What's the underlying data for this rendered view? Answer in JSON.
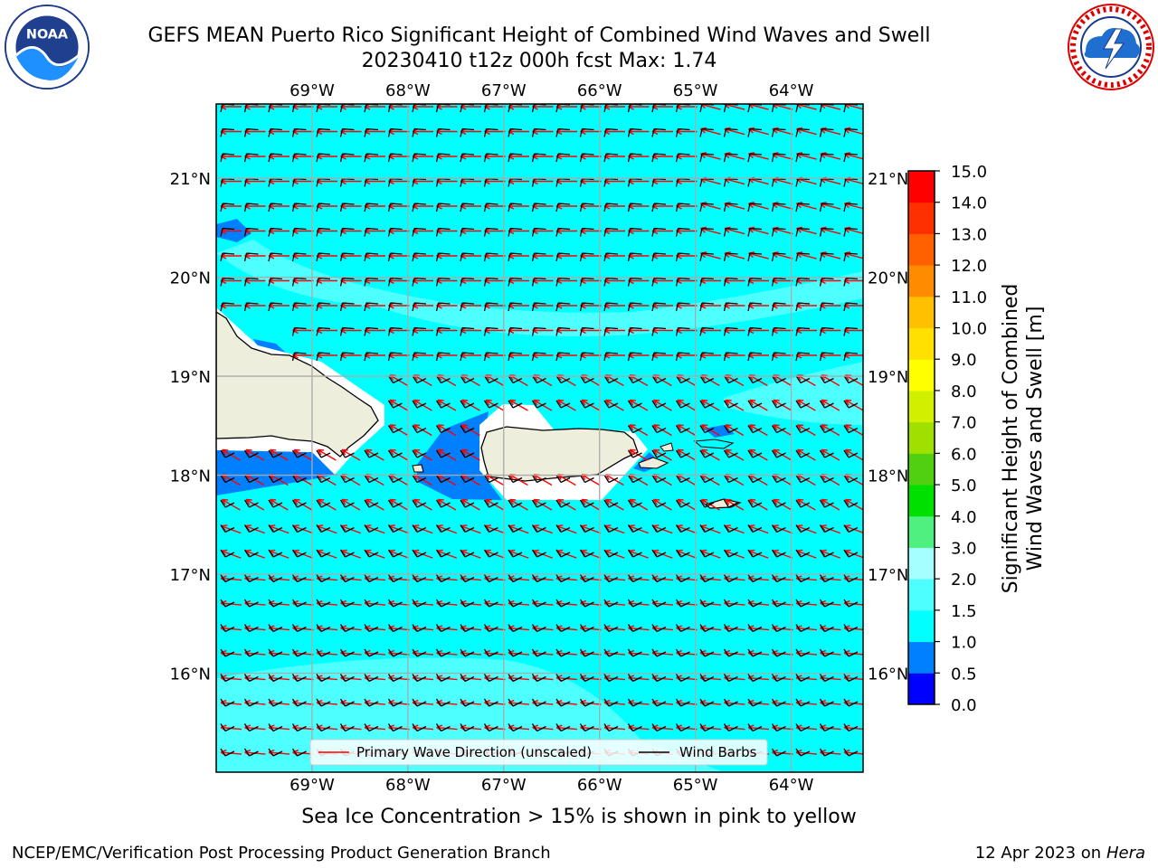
{
  "header": {
    "title_line1": "GEFS MEAN Puerto Rico Significant Height of Combined Wind Waves and Swell",
    "title_line2": "20230410 t12z 000h fcst   Max: 1.74"
  },
  "logos": {
    "left": "noaa-logo",
    "right": "nws-logo",
    "noaa_text": "NOAA"
  },
  "map": {
    "lon_labels": [
      "69°W",
      "68°W",
      "67°W",
      "66°W",
      "65°W",
      "64°W"
    ],
    "lat_labels": [
      "21°N",
      "20°N",
      "19°N",
      "18°N",
      "17°N",
      "16°N"
    ],
    "lon_values": [
      -69,
      -68,
      -67,
      -66,
      -65,
      -64
    ],
    "lat_values": [
      21,
      20,
      19,
      18,
      17,
      16
    ],
    "extent": {
      "lon": [
        -70,
        -63.25
      ],
      "lat": [
        15,
        21.75
      ]
    },
    "colors": {
      "ocean_1_1_5": "#00ffff",
      "ocean_1_5_2": "#4dffff",
      "ocean_0_5_1": "#007fff",
      "shelter": "#ffffff",
      "land": "#eeeedd",
      "wave_arrow": "#ff0000",
      "barb": "#000000"
    }
  },
  "legend": {
    "wave_label": "Primary Wave Direction (unscaled)",
    "barb_label": "Wind Barbs"
  },
  "colorbar": {
    "label_line1": "Significant Height of Combined",
    "label_line2": "Wind Waves and Swell [m]",
    "ticks": [
      "0.0",
      "0.5",
      "1.0",
      "1.5",
      "2.0",
      "3.0",
      "4.0",
      "5.0",
      "6.0",
      "7.0",
      "8.0",
      "9.0",
      "10.0",
      "11.0",
      "12.0",
      "13.0",
      "14.0",
      "15.0"
    ],
    "colors": [
      "#0000ff",
      "#007fff",
      "#00ffff",
      "#4dffff",
      "#a6ffff",
      "#50f080",
      "#00e000",
      "#50d010",
      "#a0e000",
      "#d0f000",
      "#ffff00",
      "#ffe000",
      "#ffc000",
      "#ff8c00",
      "#ff6000",
      "#ff3000",
      "#ff0000"
    ]
  },
  "footer": {
    "sea_ice_note": "Sea Ice Concentration > 15% is shown in pink to yellow",
    "branch": "NCEP/EMC/Verification Post Processing Product Generation Branch",
    "date_prefix": "12 Apr 2023 on ",
    "machine": "Hera"
  }
}
